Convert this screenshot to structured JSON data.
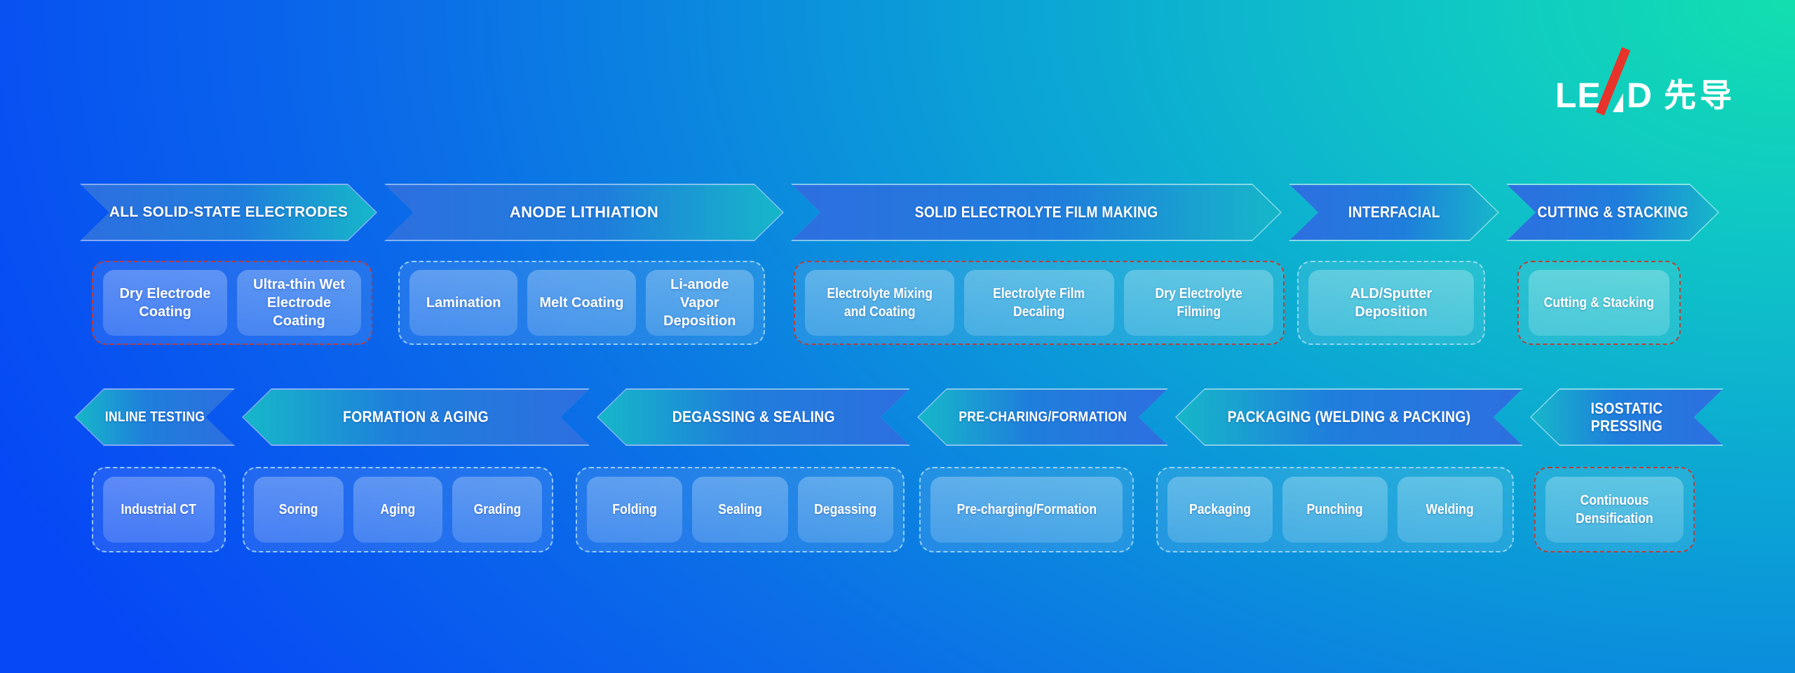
{
  "logo": {
    "le": "LE",
    "d": "D",
    "cjk": "先导"
  },
  "row1": {
    "arrows": [
      "ALL SOLID-STATE ELECTRODES",
      "ANODE LITHIATION",
      "SOLID ELECTROLYTE FILM MAKING",
      "INTERFACIAL",
      "CUTTING & STACKING"
    ],
    "groups": [
      {
        "boxes": [
          "Dry Electrode Coating",
          "Ultra-thin Wet Electrode Coating"
        ]
      },
      {
        "boxes": [
          "Lamination",
          "Melt Coating",
          "Li-anode Vapor Deposition"
        ]
      },
      {
        "boxes": [
          "Electrolyte Mixing and Coating",
          "Electrolyte Film Decaling",
          "Dry Electrolyte Filming"
        ]
      },
      {
        "boxes": [
          "ALD/Sputter Deposition"
        ]
      },
      {
        "boxes": [
          "Cutting & Stacking"
        ]
      }
    ]
  },
  "row2": {
    "arrows": [
      "INLINE TESTING",
      "FORMATION & AGING",
      "DEGASSING & SEALING",
      "PRE-CHARING/FORMATION",
      "PACKAGING (WELDING & PACKING)",
      "ISOSTATIC PRESSING"
    ],
    "groups": [
      {
        "boxes": [
          "Industrial CT"
        ]
      },
      {
        "boxes": [
          "Soring",
          "Aging",
          "Grading"
        ]
      },
      {
        "boxes": [
          "Folding",
          "Sealing",
          "Degassing"
        ]
      },
      {
        "boxes": [
          "Pre-charging/Formation"
        ]
      },
      {
        "boxes": [
          "Packaging",
          "Punching",
          "Welding"
        ]
      },
      {
        "boxes": [
          "Continuous Densification"
        ]
      }
    ]
  },
  "colors": {
    "background_blue": "#0447fb",
    "background_teal": "#12dfae",
    "arrow_blue": "#2d6fe0",
    "arrow_teal": "#16b7c9",
    "arrow_outline": "rgba(255,255,255,0.5)",
    "group_fill": "rgba(255,255,255,0.10)",
    "group_border_light": "rgba(175,225,250,0.8)",
    "group_border_red": "#c8372a",
    "box_fill": "rgba(255,255,255,0.22)",
    "logo_red": "#e8332a",
    "text": "#ffffff"
  }
}
